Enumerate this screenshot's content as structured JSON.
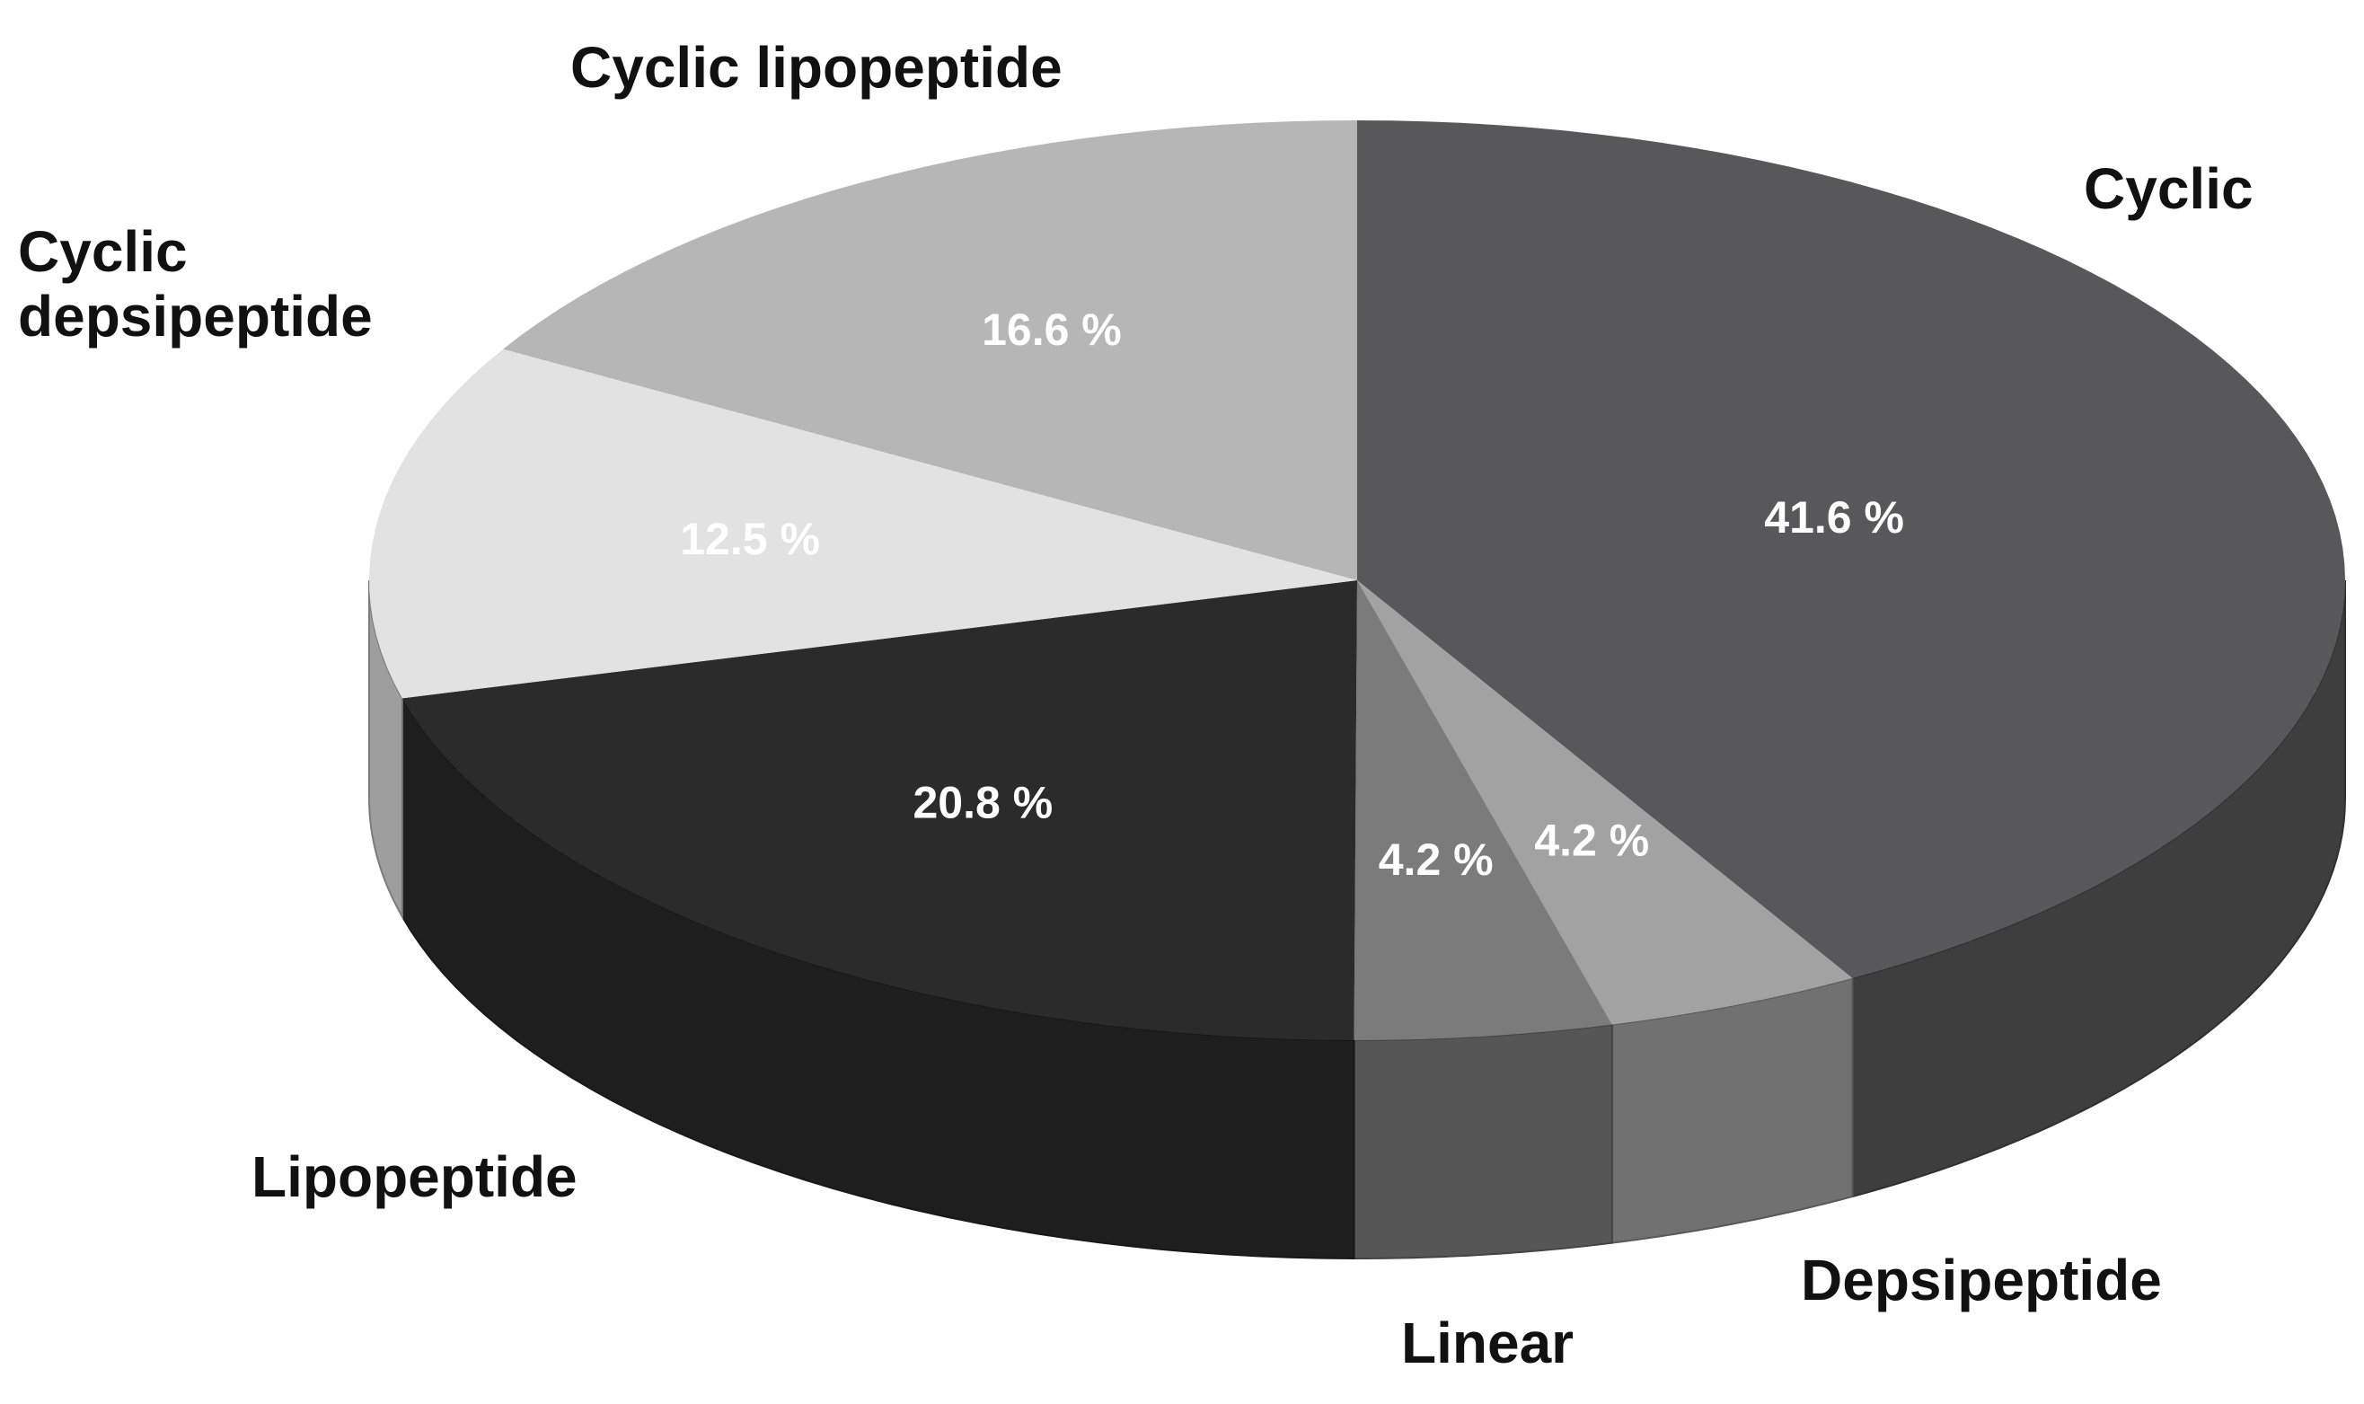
{
  "chart_data": {
    "type": "pie",
    "categories": [
      "Cyclic",
      "Depsipeptide",
      "Linear",
      "Lipopeptide",
      "Cyclic depsipeptide",
      "Cyclic lipopeptide"
    ],
    "values": [
      41.6,
      4.2,
      4.2,
      20.8,
      12.5,
      16.6
    ],
    "value_labels": [
      "41.6 %",
      "4.2 %",
      "4.2 %",
      "20.8 %",
      "12.5 %",
      "16.6 %"
    ],
    "colors": [
      "#58585a",
      "#a2a2a2",
      "#7b7b7b",
      "#2b2b2b",
      "#e2e2e2",
      "#b6b6b6"
    ]
  }
}
